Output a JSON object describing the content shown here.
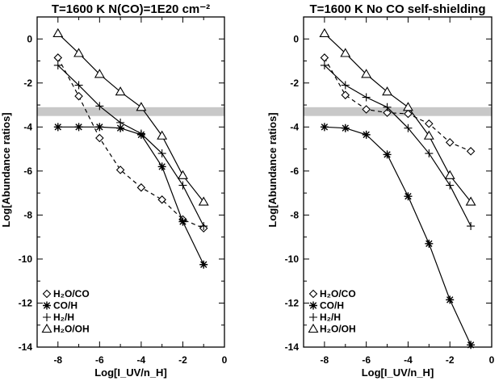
{
  "chart_data": [
    {
      "type": "line",
      "title": "T=1600 K N(CO)=1E20 cm⁻²",
      "xlabel": "Log[I_UV/n_H]",
      "ylabel": "Log[Abundance ratios]",
      "xlim": [
        -9,
        0
      ],
      "ylim": [
        -14,
        1
      ],
      "xticks": [
        -8,
        -6,
        -4,
        -2,
        0
      ],
      "yticks": [
        0,
        -2,
        -4,
        -6,
        -8,
        -10,
        -12,
        -14
      ],
      "shaded_band": [
        -3.5,
        -3.1
      ],
      "legend_position": "bottom-left",
      "x": [
        -8,
        -7,
        -6,
        -5,
        -4,
        -3,
        -2,
        -1
      ],
      "series": [
        {
          "name": "H₂O/CO",
          "marker": "diamond",
          "dash": true,
          "values": [
            -0.85,
            -2.6,
            -4.5,
            -5.95,
            -6.75,
            -7.3,
            -8.2,
            -8.6
          ]
        },
        {
          "name": "CO/H",
          "marker": "asterisk",
          "dash": false,
          "values": [
            -4.0,
            -4.0,
            -4.0,
            -4.05,
            -4.35,
            -5.8,
            -8.3,
            -10.25
          ]
        },
        {
          "name": "H₂/H",
          "marker": "plus",
          "dash": false,
          "values": [
            -1.2,
            -2.1,
            -3.05,
            -3.8,
            -4.3,
            -5.2,
            -6.65,
            -8.5
          ]
        },
        {
          "name": "H₂O/OH",
          "marker": "triangle",
          "dash": false,
          "values": [
            0.25,
            -0.65,
            -1.6,
            -2.4,
            -3.1,
            -4.4,
            -6.2,
            -7.4
          ]
        }
      ]
    },
    {
      "type": "line",
      "title": "T=1600 K No CO self-shielding",
      "xlabel": "Log[I_UV/n_H]",
      "ylabel": "Log[Abundance ratios]",
      "xlim": [
        -9,
        0
      ],
      "ylim": [
        -14,
        1
      ],
      "xticks": [
        -8,
        -6,
        -4,
        -2,
        0
      ],
      "yticks": [
        0,
        -2,
        -4,
        -6,
        -8,
        -10,
        -12,
        -14
      ],
      "shaded_band": [
        -3.5,
        -3.1
      ],
      "legend_position": "bottom-left",
      "x": [
        -8,
        -7,
        -6,
        -5,
        -4,
        -3,
        -2,
        -1
      ],
      "series": [
        {
          "name": "H₂O/CO",
          "marker": "diamond",
          "dash": true,
          "values": [
            -0.85,
            -2.55,
            -3.2,
            -3.35,
            -3.4,
            -3.85,
            -4.7,
            -5.1
          ]
        },
        {
          "name": "CO/H",
          "marker": "asterisk",
          "dash": false,
          "values": [
            -4.0,
            -4.05,
            -4.35,
            -5.25,
            -7.15,
            -9.3,
            -11.85,
            -13.9
          ]
        },
        {
          "name": "H₂/H",
          "marker": "plus",
          "dash": false,
          "values": [
            -1.2,
            -2.1,
            -2.65,
            -3.1,
            -4.05,
            -5.2,
            -6.65,
            -8.5
          ]
        },
        {
          "name": "H₂O/OH",
          "marker": "triangle",
          "dash": false,
          "values": [
            0.25,
            -0.65,
            -1.6,
            -2.4,
            -3.1,
            -4.4,
            -6.2,
            -7.4
          ]
        }
      ]
    }
  ]
}
